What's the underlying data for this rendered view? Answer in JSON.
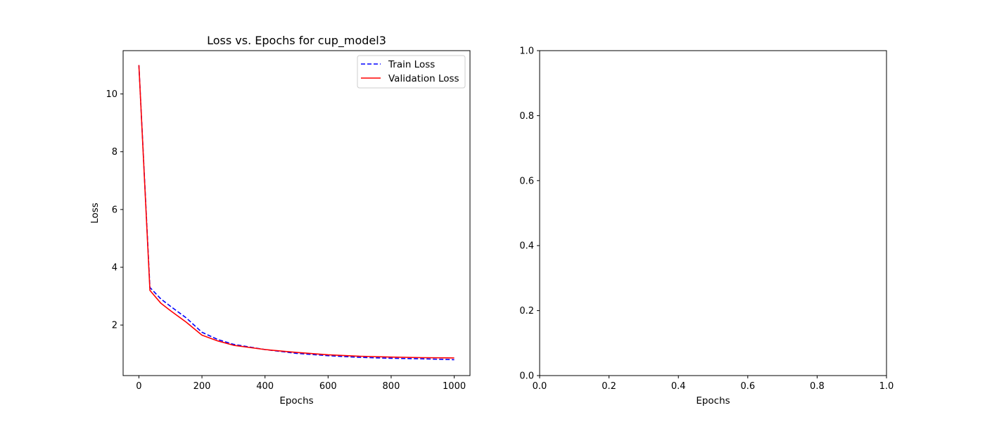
{
  "chart_data": [
    {
      "type": "line",
      "title": "Loss vs. Epochs for cup_model3",
      "xlabel": "Epochs",
      "ylabel": "Loss",
      "xlim": [
        -50,
        1050
      ],
      "ylim": [
        0.25,
        11.5
      ],
      "xticks": [
        0,
        200,
        400,
        600,
        800,
        1000
      ],
      "yticks": [
        2,
        4,
        6,
        8,
        10
      ],
      "legend": "upper right",
      "grid": false,
      "series": [
        {
          "name": "Train Loss",
          "color": "#0000ff",
          "style": "dashed",
          "x": [
            0,
            35,
            70,
            100,
            150,
            200,
            250,
            300,
            400,
            500,
            600,
            700,
            800,
            900,
            1000
          ],
          "y": [
            11.0,
            3.3,
            2.9,
            2.65,
            2.25,
            1.75,
            1.5,
            1.33,
            1.15,
            1.02,
            0.94,
            0.88,
            0.85,
            0.83,
            0.8
          ]
        },
        {
          "name": "Validation Loss",
          "color": "#ff0000",
          "style": "solid",
          "x": [
            0,
            35,
            70,
            100,
            150,
            200,
            250,
            300,
            400,
            500,
            600,
            700,
            800,
            900,
            1000
          ],
          "y": [
            11.0,
            3.2,
            2.75,
            2.5,
            2.1,
            1.65,
            1.45,
            1.3,
            1.15,
            1.05,
            0.97,
            0.92,
            0.89,
            0.87,
            0.86
          ]
        }
      ]
    },
    {
      "type": "line",
      "title": "",
      "xlabel": "Epochs",
      "ylabel": "",
      "xlim": [
        0,
        1
      ],
      "ylim": [
        0,
        1
      ],
      "xticks": [
        0.0,
        0.2,
        0.4,
        0.6,
        0.8,
        1.0
      ],
      "yticks": [
        0.0,
        0.2,
        0.4,
        0.6,
        0.8,
        1.0
      ],
      "grid": false,
      "series": []
    }
  ]
}
